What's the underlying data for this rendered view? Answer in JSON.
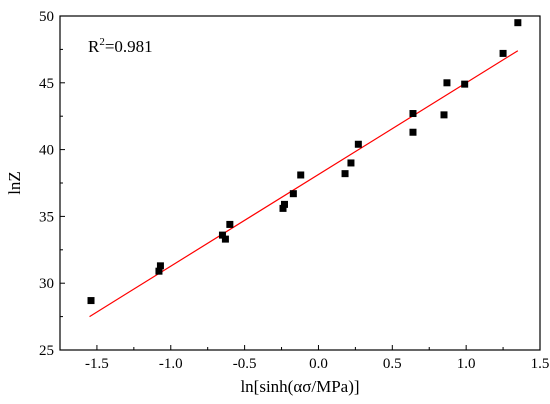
{
  "chart_data": {
    "type": "scatter",
    "xlabel": "ln[sinh(ασ/MPa)]",
    "ylabel": "lnZ",
    "xlim": [
      -1.75,
      1.5
    ],
    "ylim": [
      25,
      50
    ],
    "xticks": [
      -1.5,
      -1.0,
      -0.5,
      0.0,
      0.5,
      1.0,
      1.5
    ],
    "xtick_labels": [
      "-1.5",
      "-1.0",
      "-0.5",
      "0.0",
      "0.5",
      "1.0",
      "1.5"
    ],
    "yticks": [
      25,
      30,
      35,
      40,
      45,
      50
    ],
    "ytick_labels": [
      "25",
      "30",
      "35",
      "40",
      "45",
      "50"
    ],
    "grid": false,
    "annotation": {
      "base": "R",
      "sup": "2",
      "rest": "=0.981"
    },
    "series": [
      {
        "marker": "square",
        "color": "#000000",
        "points": [
          [
            -1.54,
            28.7
          ],
          [
            -1.08,
            30.9
          ],
          [
            -1.07,
            31.3
          ],
          [
            -0.65,
            33.6
          ],
          [
            -0.63,
            33.3
          ],
          [
            -0.6,
            34.4
          ],
          [
            -0.24,
            35.6
          ],
          [
            -0.23,
            35.9
          ],
          [
            -0.17,
            36.7
          ],
          [
            -0.12,
            38.1
          ],
          [
            0.18,
            38.2
          ],
          [
            0.22,
            39.0
          ],
          [
            0.27,
            40.4
          ],
          [
            0.64,
            42.7
          ],
          [
            0.64,
            41.3
          ],
          [
            0.85,
            42.6
          ],
          [
            0.87,
            45.0
          ],
          [
            0.99,
            44.9
          ],
          [
            1.25,
            47.2
          ],
          [
            1.35,
            49.5
          ]
        ]
      },
      {
        "type": "line",
        "color": "#ff0000",
        "points": [
          [
            -1.55,
            27.5
          ],
          [
            1.35,
            47.4
          ]
        ]
      }
    ]
  }
}
